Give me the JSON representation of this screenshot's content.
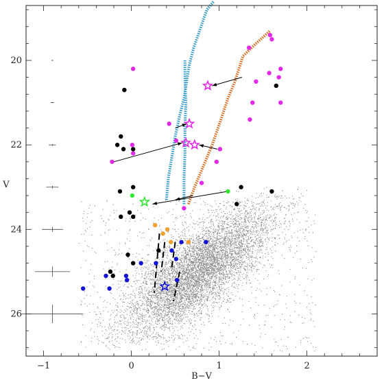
{
  "chart_data": {
    "type": "scatter",
    "title": "",
    "xlabel": "B−V",
    "ylabel": "V",
    "xlim": [
      -1.2,
      2.8
    ],
    "ylim": [
      27.0,
      18.7
    ],
    "y_inverted": true,
    "x_ticks": [
      -1,
      0,
      1,
      2
    ],
    "y_ticks": [
      20,
      22,
      24,
      26
    ],
    "x_tick_labels": [
      "−1",
      "0",
      "1",
      "2"
    ],
    "y_tick_labels": [
      "20",
      "22",
      "24",
      "26"
    ],
    "grid": false,
    "legend": "none",
    "colors": {
      "background_stars": "#8c8c8c",
      "blue_isochrone": "#3399cc",
      "orange_isochrone": "#d9691c",
      "magenta": "#e22ae6",
      "black": "#000000",
      "green": "#33e633",
      "orange": "#f0a030",
      "blue": "#1414d6",
      "arrow": "#000000"
    },
    "background_cloud": {
      "description_level": "dense field of faint stars",
      "core_center": [
        0.75,
        25.0
      ],
      "approx_count": 9000
    },
    "error_bars": [
      {
        "x": -0.9,
        "y": 20.0,
        "xerr": 0.01,
        "yerr": 0.01
      },
      {
        "x": -0.9,
        "y": 21.0,
        "xerr": 0.02,
        "yerr": 0.01
      },
      {
        "x": -0.9,
        "y": 22.0,
        "xerr": 0.04,
        "yerr": 0.02
      },
      {
        "x": -0.9,
        "y": 23.0,
        "xerr": 0.07,
        "yerr": 0.03
      },
      {
        "x": -0.9,
        "y": 24.0,
        "xerr": 0.12,
        "yerr": 0.06
      },
      {
        "x": -0.9,
        "y": 25.0,
        "xerr": 0.2,
        "yerr": 0.12
      },
      {
        "x": -0.9,
        "y": 26.0,
        "xerr": 0.35,
        "yerr": 0.22
      }
    ],
    "isochrones": [
      {
        "color": "blue_isochrone",
        "style": "dotted-thick",
        "x": [
          0.4,
          0.42,
          0.46,
          0.5,
          0.55,
          0.6,
          0.63,
          0.66,
          0.71,
          0.76,
          0.81,
          0.86,
          0.94
        ],
        "y": [
          23.3,
          22.8,
          22.3,
          21.8,
          21.3,
          20.9,
          20.5,
          20.1,
          19.7,
          19.4,
          19.1,
          18.8,
          18.6
        ]
      },
      {
        "color": "blue_isochrone",
        "style": "dotted-thick",
        "x": [
          0.6,
          0.6,
          0.61,
          0.61,
          0.62,
          0.61,
          0.61
        ],
        "y": [
          23.4,
          22.8,
          22.2,
          21.6,
          21.0,
          20.4,
          20.0
        ]
      },
      {
        "color": "orange_isochrone",
        "style": "dotted-thick",
        "x": [
          0.65,
          0.72,
          0.82,
          0.92,
          1.02,
          1.1,
          1.18,
          1.27,
          1.42,
          1.58
        ],
        "y": [
          23.4,
          23.0,
          22.5,
          22.0,
          21.4,
          20.9,
          20.5,
          19.9,
          19.6,
          19.3
        ]
      }
    ],
    "dashed_lines": [
      {
        "x": [
          0.32,
          0.26
        ],
        "y": [
          24.1,
          25.5
        ]
      },
      {
        "x": [
          0.38,
          0.34
        ],
        "y": [
          24.3,
          25.0
        ]
      },
      {
        "x": [
          0.5,
          0.46
        ],
        "y": [
          24.3,
          24.9
        ]
      },
      {
        "x": [
          0.55,
          0.48
        ],
        "y": [
          25.0,
          25.7
        ]
      }
    ],
    "series": [
      {
        "name": "",
        "color": "magenta",
        "marker": "circle",
        "x": [
          0.02,
          1.34,
          1.42,
          1.58,
          1.6,
          1.57,
          1.68,
          1.7,
          1.38,
          1.35,
          1.7,
          0.6,
          0.51,
          0.43,
          -0.22,
          0.01,
          0.02,
          1.01,
          0.97,
          0.8
        ],
        "y": [
          20.2,
          19.7,
          20.5,
          19.4,
          19.5,
          20.3,
          20.4,
          20.2,
          21.0,
          21.4,
          21.0,
          23.5,
          21.9,
          21.5,
          22.4,
          22.0,
          22.2,
          22.1,
          22.4,
          22.9
        ]
      },
      {
        "name": "",
        "color": "black",
        "marker": "circle",
        "x": [
          -0.08,
          -0.16,
          -0.12,
          -0.09,
          0.02,
          0.02,
          -0.13,
          -0.12,
          -0.02,
          0.02,
          1.2,
          1.25,
          1.6,
          1.65,
          0.31,
          -0.04,
          -0.24,
          -0.21,
          0.02
        ],
        "y": [
          20.7,
          22.0,
          21.8,
          22.1,
          22.1,
          23.0,
          23.1,
          23.7,
          23.6,
          23.7,
          23.4,
          23.0,
          23.1,
          20.6,
          24.5,
          24.6,
          25.0,
          25.1,
          24.8
        ]
      },
      {
        "name": "",
        "color": "green",
        "marker": "circle",
        "x": [
          0.01,
          1.1
        ],
        "y": [
          23.2,
          23.1
        ]
      },
      {
        "name": "",
        "color": "orange",
        "marker": "circle",
        "x": [
          0.27,
          0.36,
          0.41,
          0.45,
          0.65
        ],
        "y": [
          23.9,
          24.1,
          24.0,
          24.3,
          24.3
        ]
      },
      {
        "name": "",
        "color": "blue",
        "marker": "circle",
        "x": [
          -0.55,
          -0.29,
          -0.25,
          -0.06,
          -0.05,
          0.11,
          0.28,
          0.46,
          0.51,
          0.52,
          0.85,
          0.57
        ],
        "y": [
          25.4,
          25.1,
          25.4,
          25.1,
          25.2,
          24.8,
          24.8,
          24.5,
          24.7,
          25.2,
          24.3,
          24.3
        ]
      }
    ],
    "stars": [
      {
        "color": "magenta",
        "x": 0.87,
        "y": 20.6
      },
      {
        "color": "magenta",
        "x": 0.66,
        "y": 21.5
      },
      {
        "color": "magenta",
        "x": 0.62,
        "y": 21.95
      },
      {
        "color": "magenta",
        "x": 0.72,
        "y": 22.0
      },
      {
        "color": "green",
        "x": 0.15,
        "y": 23.35
      },
      {
        "color": "blue",
        "x": 0.38,
        "y": 25.35
      }
    ],
    "arrows": [
      {
        "from": [
          1.26,
          20.4
        ],
        "to": [
          0.92,
          20.6
        ]
      },
      {
        "from": [
          0.5,
          21.6
        ],
        "to": [
          0.63,
          21.5
        ]
      },
      {
        "from": [
          -0.2,
          22.4
        ],
        "to": [
          0.58,
          21.95
        ]
      },
      {
        "from": [
          0.98,
          22.1
        ],
        "to": [
          0.77,
          22.0
        ]
      },
      {
        "from": [
          1.1,
          23.1
        ],
        "to": [
          0.24,
          23.4
        ]
      },
      {
        "from": [
          0.7,
          23.2
        ],
        "to": [
          0.5,
          23.3
        ]
      }
    ]
  }
}
